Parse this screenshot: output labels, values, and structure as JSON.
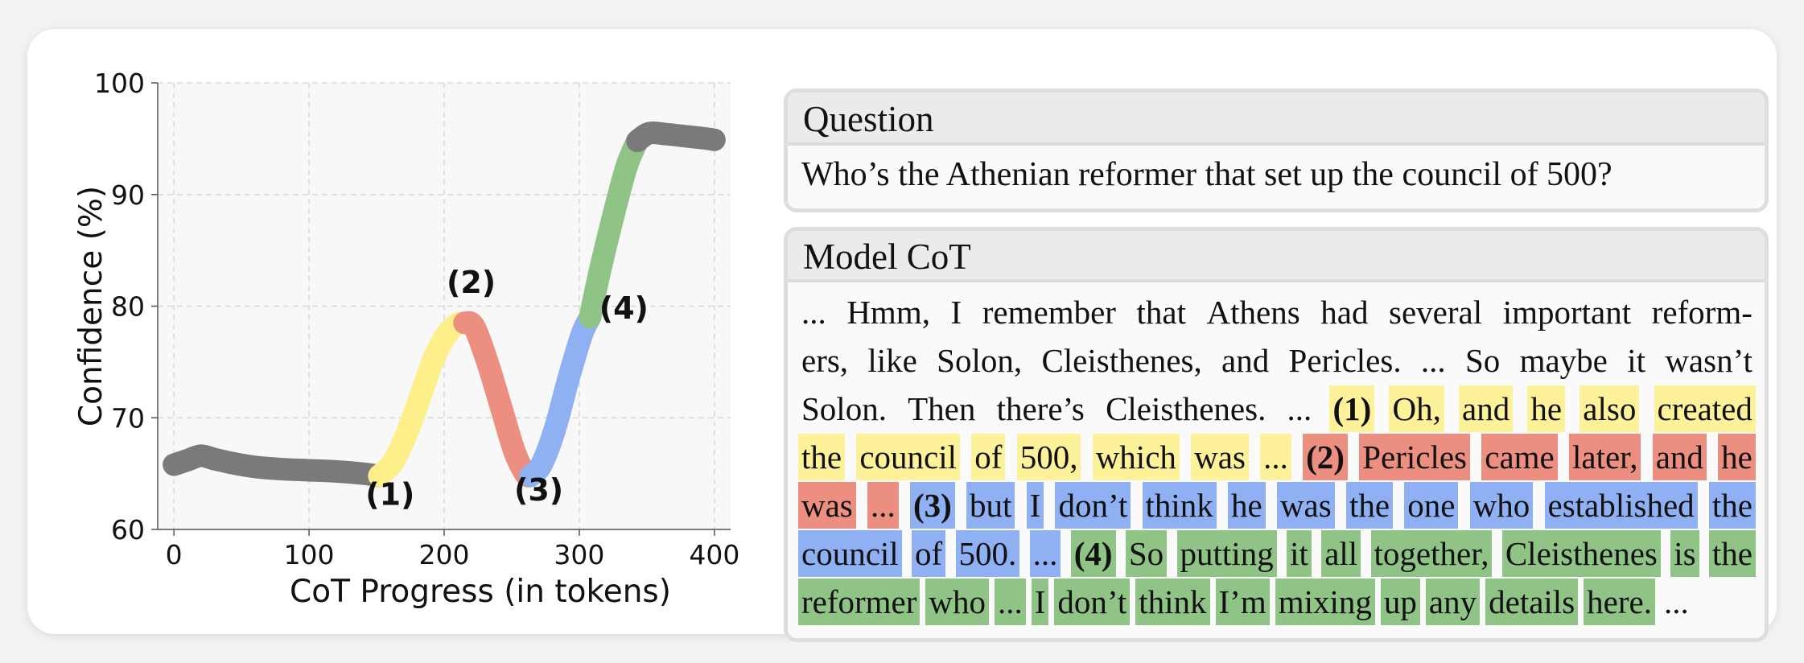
{
  "chart_data": {
    "type": "line",
    "xlabel": "CoT Progress (in tokens)",
    "ylabel": "Confidence (%)",
    "xlim": [
      -12,
      412
    ],
    "ylim": [
      60,
      100
    ],
    "xticks": [
      0,
      100,
      200,
      300,
      400
    ],
    "yticks": [
      60,
      70,
      80,
      90,
      100
    ],
    "grid": true,
    "series": [
      {
        "color": "#7a7a7a",
        "points": [
          [
            0,
            65.8
          ],
          [
            10,
            66.2
          ],
          [
            20,
            66.6
          ],
          [
            30,
            66.3
          ],
          [
            45,
            65.9
          ],
          [
            60,
            65.6
          ],
          [
            80,
            65.4
          ],
          [
            100,
            65.3
          ],
          [
            120,
            65.2
          ],
          [
            140,
            65.0
          ],
          [
            152,
            64.8
          ]
        ]
      },
      {
        "color": "#fdf08a",
        "points": [
          [
            152,
            64.8
          ],
          [
            162,
            66.0
          ],
          [
            172,
            68.5
          ],
          [
            182,
            71.8
          ],
          [
            192,
            75.2
          ],
          [
            202,
            77.5
          ],
          [
            210,
            78.4
          ],
          [
            215,
            78.5
          ]
        ]
      },
      {
        "color": "#ec8f81",
        "points": [
          [
            215,
            78.5
          ],
          [
            222,
            78.2
          ],
          [
            232,
            75.0
          ],
          [
            242,
            71.0
          ],
          [
            252,
            67.0
          ],
          [
            260,
            65.0
          ],
          [
            264,
            64.8
          ]
        ]
      },
      {
        "color": "#8fb0f3",
        "points": [
          [
            264,
            64.8
          ],
          [
            272,
            65.8
          ],
          [
            282,
            69.0
          ],
          [
            292,
            73.5
          ],
          [
            302,
            77.5
          ],
          [
            308,
            79.0
          ]
        ]
      },
      {
        "color": "#90c486",
        "points": [
          [
            308,
            79.0
          ],
          [
            315,
            83.0
          ],
          [
            325,
            88.0
          ],
          [
            335,
            92.5
          ],
          [
            343,
            94.8
          ]
        ]
      },
      {
        "color": "#7a7a7a",
        "points": [
          [
            343,
            94.8
          ],
          [
            352,
            95.5
          ],
          [
            365,
            95.4
          ],
          [
            380,
            95.2
          ],
          [
            395,
            95.0
          ],
          [
            400,
            94.9
          ]
        ]
      }
    ],
    "annotations": [
      {
        "label": "(1)",
        "x": 160,
        "y": 62.2
      },
      {
        "label": "(2)",
        "x": 220,
        "y": 81.2
      },
      {
        "label": "(3)",
        "x": 270,
        "y": 62.6
      },
      {
        "label": "(4)",
        "x": 333,
        "y": 78.9
      }
    ]
  },
  "question": {
    "title": "Question",
    "text": "Who’s the Athenian reformer that set up the council of 500?"
  },
  "cot": {
    "title": "Model CoT",
    "lines": [
      [
        [
          "...",
          ""
        ],
        [
          "Hmm,",
          ""
        ],
        [
          "I",
          ""
        ],
        [
          "remember",
          ""
        ],
        [
          "that",
          ""
        ],
        [
          "Athens",
          ""
        ],
        [
          "had",
          ""
        ],
        [
          "several",
          ""
        ],
        [
          "important",
          ""
        ],
        [
          "reform-",
          ""
        ]
      ],
      [
        [
          "ers,",
          ""
        ],
        [
          "like",
          ""
        ],
        [
          "Solon,",
          ""
        ],
        [
          "Cleisthenes,",
          ""
        ],
        [
          "and",
          ""
        ],
        [
          "Pericles.",
          ""
        ],
        [
          "...",
          ""
        ],
        [
          "So",
          ""
        ],
        [
          "maybe",
          ""
        ],
        [
          "it",
          ""
        ],
        [
          "wasn’t",
          ""
        ]
      ],
      [
        [
          "Solon.",
          ""
        ],
        [
          "Then",
          ""
        ],
        [
          "there’s",
          ""
        ],
        [
          "Cleisthenes.",
          ""
        ],
        [
          "...",
          ""
        ],
        [
          "(1)",
          "yellow"
        ],
        [
          "Oh,",
          "yellow"
        ],
        [
          "and",
          "yellow"
        ],
        [
          "he",
          "yellow"
        ],
        [
          "also",
          "yellow"
        ],
        [
          "created",
          "yellow"
        ]
      ],
      [
        [
          "the",
          "yellow"
        ],
        [
          "council",
          "yellow"
        ],
        [
          "of",
          "yellow"
        ],
        [
          "500,",
          "yellow"
        ],
        [
          "which",
          "yellow"
        ],
        [
          "was",
          "yellow"
        ],
        [
          "...",
          "yellow"
        ],
        [
          "(2)",
          "red"
        ],
        [
          "Pericles",
          "red"
        ],
        [
          "came",
          "red"
        ],
        [
          "later,",
          "red"
        ],
        [
          "and",
          "red"
        ],
        [
          "he",
          "red"
        ]
      ],
      [
        [
          "was",
          "red"
        ],
        [
          "...",
          "red"
        ],
        [
          "(3)",
          "blue"
        ],
        [
          "but",
          "blue"
        ],
        [
          "I",
          "blue"
        ],
        [
          "don’t",
          "blue"
        ],
        [
          "think",
          "blue"
        ],
        [
          "he",
          "blue"
        ],
        [
          "was",
          "blue"
        ],
        [
          "the",
          "blue"
        ],
        [
          "one",
          "blue"
        ],
        [
          "who",
          "blue"
        ],
        [
          "established",
          "blue"
        ],
        [
          "the",
          "blue"
        ]
      ],
      [
        [
          "council",
          "blue"
        ],
        [
          "of",
          "blue"
        ],
        [
          "500.",
          "blue"
        ],
        [
          "...",
          "blue"
        ],
        [
          "(4)",
          "green"
        ],
        [
          "So",
          "green"
        ],
        [
          "putting",
          "green"
        ],
        [
          "it",
          "green"
        ],
        [
          "all",
          "green"
        ],
        [
          "together,",
          "green"
        ],
        [
          "Cleisthenes",
          "green"
        ],
        [
          "is",
          "green"
        ],
        [
          "the",
          "green"
        ]
      ],
      [
        [
          "reformer",
          "green"
        ],
        [
          "who",
          "green"
        ],
        [
          "...",
          "green"
        ],
        [
          "I",
          "green"
        ],
        [
          "don’t",
          "green"
        ],
        [
          "think",
          "green"
        ],
        [
          "I’m",
          "green"
        ],
        [
          "mixing",
          "green"
        ],
        [
          "up",
          "green"
        ],
        [
          "any",
          "green"
        ],
        [
          "details",
          "green"
        ],
        [
          "here.",
          "green"
        ],
        [
          "...",
          ""
        ]
      ]
    ]
  },
  "colors": {
    "gray": "#7a7a7a",
    "yellow": "#fdf19a",
    "red": "#ec8f81",
    "blue": "#8fb0f3",
    "green": "#90c486"
  }
}
